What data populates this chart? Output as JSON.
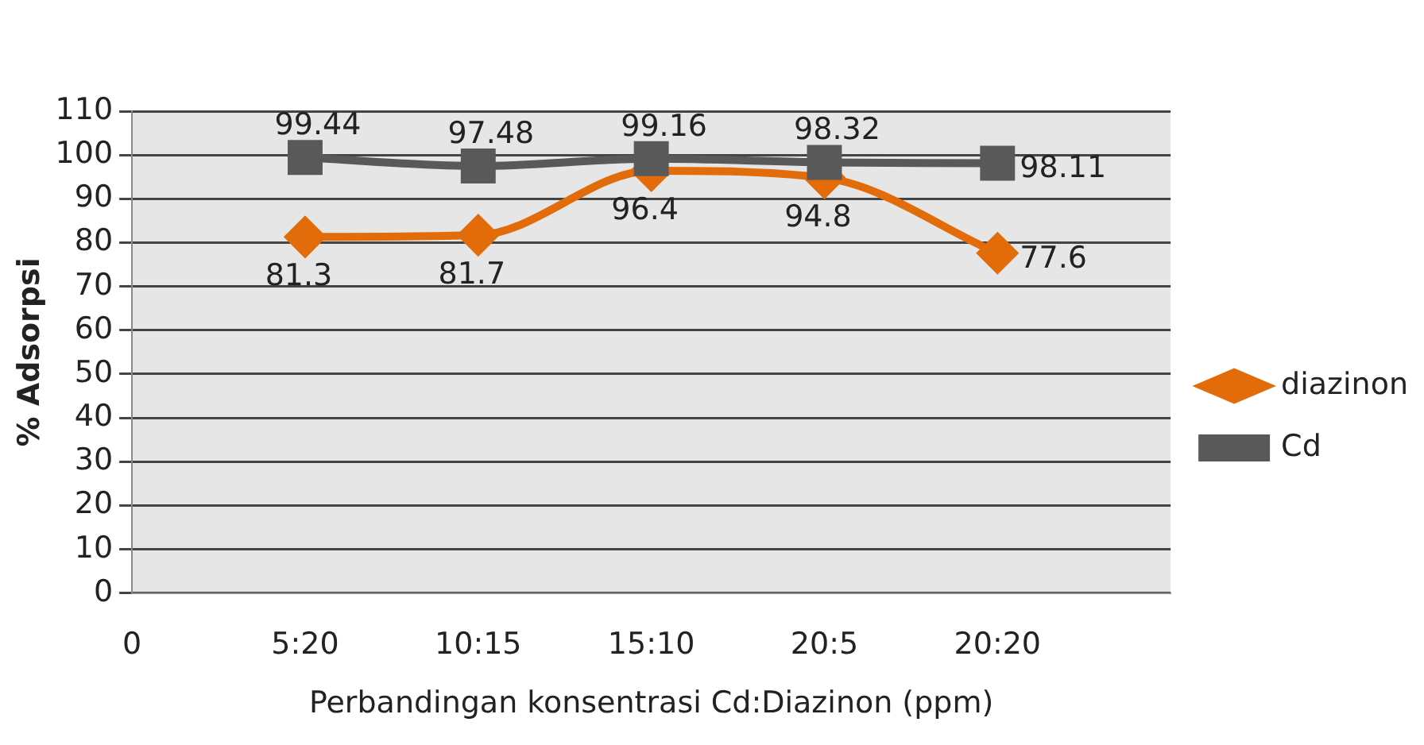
{
  "chart_data": {
    "type": "line",
    "xlabel": "Perbandingan konsentrasi Cd:Diazinon (ppm)",
    "ylabel": "% Adsorpsi",
    "categories": [
      "0",
      "5:20",
      "10:15",
      "15:10",
      "20:5",
      "20:20",
      null
    ],
    "series": [
      {
        "name": "diazinon",
        "color": "#e36c0a",
        "marker": "diamond",
        "values": [
          null,
          81.3,
          81.7,
          96.4,
          94.8,
          77.6,
          null
        ]
      },
      {
        "name": "Cd",
        "color": "#595959",
        "marker": "square",
        "values": [
          null,
          99.44,
          97.48,
          99.16,
          98.32,
          98.11,
          null
        ]
      }
    ],
    "ylim": [
      0,
      110
    ],
    "yticks": [
      0,
      10,
      20,
      30,
      40,
      50,
      60,
      70,
      80,
      90,
      100,
      110
    ],
    "grid": "y",
    "legend": "right",
    "data_labels": true
  }
}
